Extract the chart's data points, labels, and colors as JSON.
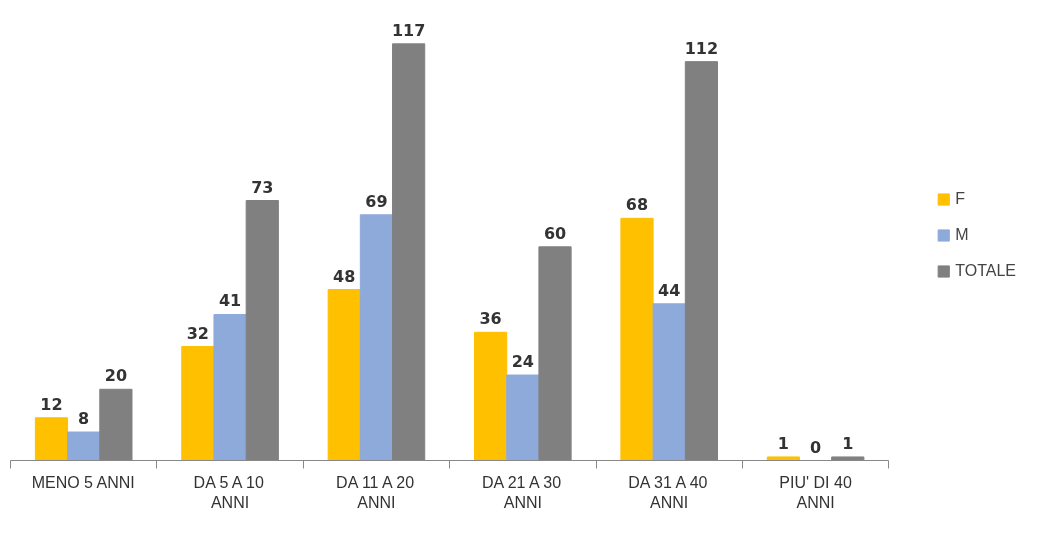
{
  "chart_data": {
    "type": "bar",
    "categories": [
      "MENO 5 ANNI",
      "DA 5 A 10\nANNI",
      "DA 11 A 20\nANNI",
      "DA 21 A 30\nANNI",
      "DA 31 A 40\nANNI",
      "PIU' DI 40\nANNI"
    ],
    "series": [
      {
        "name": "F",
        "color": "#ffc000",
        "values": [
          12,
          32,
          48,
          36,
          68,
          1
        ]
      },
      {
        "name": "M",
        "color": "#8eaadb",
        "values": [
          8,
          41,
          69,
          24,
          44,
          0
        ]
      },
      {
        "name": "TOTALE",
        "color": "#808080",
        "values": [
          20,
          73,
          117,
          60,
          112,
          1
        ]
      }
    ],
    "data_labels": true,
    "legend": "right",
    "grid": false
  }
}
